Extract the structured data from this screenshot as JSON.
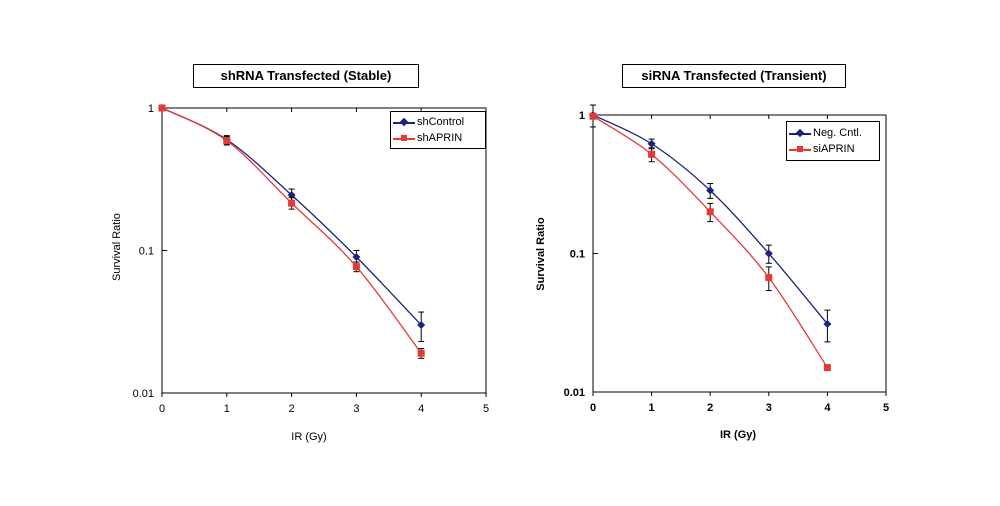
{
  "chart_data": [
    {
      "type": "line",
      "title": "shRNA Transfected (Stable)",
      "xlabel": "IR (Gy)",
      "ylabel": "Survival Ratio",
      "xlim": [
        0,
        5
      ],
      "ylim": [
        0.01,
        1
      ],
      "yscale": "log",
      "x_ticks": [
        "0",
        "1",
        "2",
        "3",
        "4",
        "5"
      ],
      "y_ticks": [
        "0.01",
        "0.1",
        "1"
      ],
      "legend_position": "top-right",
      "x": [
        0,
        1,
        2,
        3,
        4
      ],
      "series": [
        {
          "name": "shControl",
          "values": [
            1.0,
            0.6,
            0.245,
            0.09,
            0.03
          ],
          "errors": [
            0.0,
            0.04,
            0.025,
            0.01,
            0.007
          ],
          "color": "#1a237e",
          "marker": "diamond"
        },
        {
          "name": "shAPRIN",
          "values": [
            1.0,
            0.59,
            0.215,
            0.077,
            0.019
          ],
          "errors": [
            0.0,
            0.04,
            0.02,
            0.006,
            0.0015
          ],
          "color": "#e53935",
          "marker": "square"
        }
      ]
    },
    {
      "type": "line",
      "title": "siRNA Transfected (Transient)",
      "xlabel": "IR (Gy)",
      "ylabel": "Survival Ratio",
      "xlim": [
        0,
        5
      ],
      "ylim": [
        0.01,
        1
      ],
      "yscale": "log",
      "x_ticks": [
        "0",
        "1",
        "2",
        "3",
        "4",
        "5"
      ],
      "y_ticks": [
        "0.01",
        "0.1",
        "1"
      ],
      "legend_position": "top-right",
      "x": [
        0,
        1,
        2,
        3,
        4
      ],
      "series": [
        {
          "name": "Neg. Cntl.",
          "values": [
            1.0,
            0.62,
            0.285,
            0.1,
            0.031
          ],
          "errors": [
            0.18,
            0.05,
            0.035,
            0.015,
            0.008
          ],
          "color": "#1a237e",
          "marker": "diamond"
        },
        {
          "name": "siAPRIN",
          "values": [
            0.98,
            0.52,
            0.2,
            0.067,
            0.015
          ],
          "errors": [
            0.0,
            0.06,
            0.03,
            0.013,
            0.0
          ],
          "color": "#e53935",
          "marker": "square"
        }
      ]
    }
  ]
}
